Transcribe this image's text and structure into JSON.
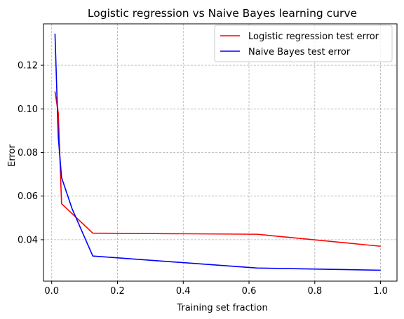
{
  "chart_data": {
    "type": "line",
    "title": "Logistic regression vs Naive Bayes learning curve",
    "xlabel": "Training set fraction",
    "ylabel": "Error",
    "xlim": [
      -0.025,
      1.05
    ],
    "ylim": [
      0.021,
      0.139
    ],
    "xticks": [
      0.0,
      0.2,
      0.4,
      0.6,
      0.8,
      1.0
    ],
    "xtick_labels": [
      "0.0",
      "0.2",
      "0.4",
      "0.6",
      "0.8",
      "1.0"
    ],
    "yticks": [
      0.04,
      0.06,
      0.08,
      0.1,
      0.12
    ],
    "ytick_labels": [
      "0.04",
      "0.06",
      "0.08",
      "0.10",
      "0.12"
    ],
    "grid": true,
    "grid_style": "dashed",
    "legend_position": "top-right",
    "series": [
      {
        "name": "Logistic regression test error",
        "color": "#ff0000",
        "x": [
          0.01,
          0.02,
          0.03,
          0.125,
          0.625,
          1.0
        ],
        "y": [
          0.108,
          0.098,
          0.0565,
          0.043,
          0.0425,
          0.037
        ]
      },
      {
        "name": "Naive Bayes test error",
        "color": "#0000ff",
        "x": [
          0.01,
          0.02,
          0.03,
          0.0625,
          0.125,
          0.625,
          1.0
        ],
        "y": [
          0.1345,
          0.087,
          0.0685,
          0.054,
          0.0325,
          0.027,
          0.026
        ]
      }
    ]
  }
}
